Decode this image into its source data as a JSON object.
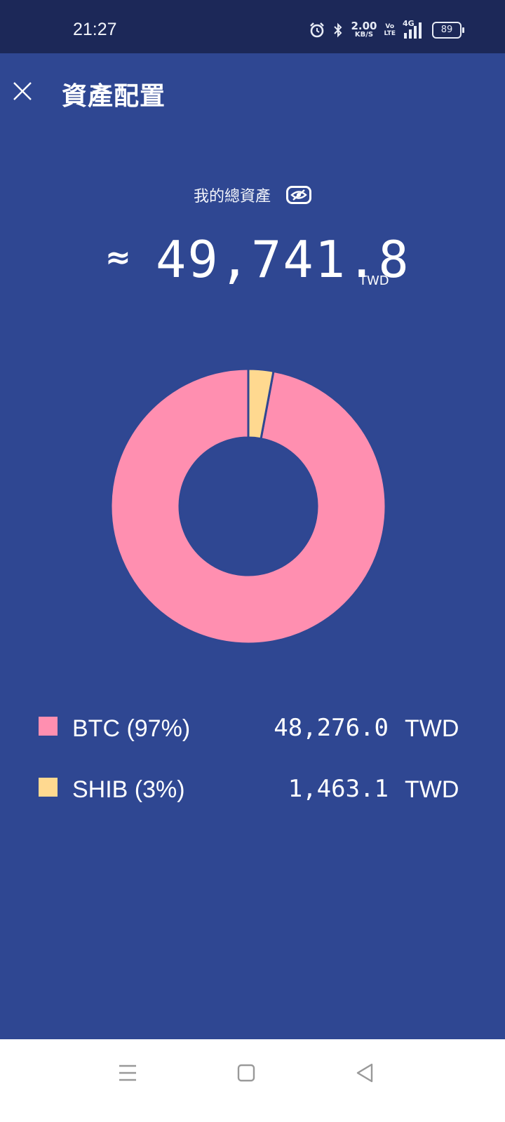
{
  "status_bar": {
    "time": "21:27",
    "icons": [
      "alarm-icon",
      "bluetooth-icon",
      "signal-icon",
      "battery-icon"
    ],
    "net_speed_value": "2.00",
    "net_speed_unit": "KB/S",
    "volte_top": "Vo",
    "volte_bottom": "LTE",
    "network": "4G",
    "battery_level": "89"
  },
  "header": {
    "title": "資產配置",
    "close_icon": "close-icon"
  },
  "summary": {
    "label": "我的總資產",
    "visibility_icon": "eye-icon",
    "approx_symbol": "≈",
    "total_value": "49,741.8",
    "currency": "TWD"
  },
  "chart_data": {
    "type": "pie",
    "style": "donut",
    "categories": [
      "BTC",
      "SHIB"
    ],
    "values": [
      48276.0,
      1463.1
    ],
    "colors": [
      "#ff8fb0",
      "#ffd990"
    ]
  },
  "legend": [
    {
      "label": "BTC (97%)",
      "amount": "48,276.0",
      "currency": "TWD",
      "color": "#ff8fb0"
    },
    {
      "label": "SHIB (3%)",
      "amount": "1,463.1",
      "currency": "TWD",
      "color": "#ffd990"
    }
  ],
  "nav_bar": {
    "items": [
      "menu-icon",
      "home-icon",
      "back-icon"
    ]
  },
  "colors": {
    "background": "#2f4792",
    "status_bar": "#1c2858",
    "btc": "#ff8fb0",
    "shib": "#ffd990"
  }
}
